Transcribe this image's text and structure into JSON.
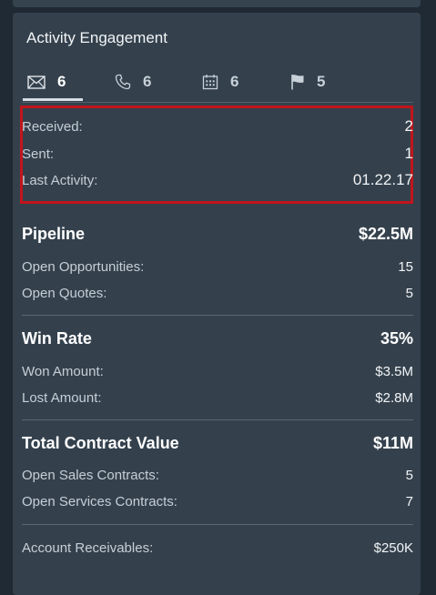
{
  "card": {
    "title": "Activity Engagement"
  },
  "tabs": [
    {
      "icon": "envelope-icon",
      "count": "6",
      "active": true
    },
    {
      "icon": "phone-icon",
      "count": "6",
      "active": false
    },
    {
      "icon": "calendar-icon",
      "count": "6",
      "active": false
    },
    {
      "icon": "flag-icon",
      "count": "5",
      "active": false
    }
  ],
  "activity": {
    "received_label": "Received:",
    "received_value": "2",
    "sent_label": "Sent:",
    "sent_value": "1",
    "last_label": "Last Activity:",
    "last_value": "01.22.17"
  },
  "pipeline": {
    "title": "Pipeline",
    "amount": "$22.5M",
    "open_opps_label": "Open Opportunities:",
    "open_opps_value": "15",
    "open_quotes_label": "Open Quotes:",
    "open_quotes_value": "5"
  },
  "win_rate": {
    "title": "Win Rate",
    "amount": "35%",
    "won_label": "Won Amount:",
    "won_value": "$3.5M",
    "lost_label": "Lost Amount:",
    "lost_value": "$2.8M"
  },
  "contract": {
    "title": "Total Contract Value",
    "amount": "$11M",
    "sales_label": "Open Sales Contracts:",
    "sales_value": "5",
    "services_label": "Open Services Contracts:",
    "services_value": "7"
  },
  "receivables": {
    "label": "Account Receivables:",
    "value": "$250K"
  },
  "colors": {
    "background": "#1f2a34",
    "card": "#34414d",
    "highlight": "#c0161b"
  }
}
